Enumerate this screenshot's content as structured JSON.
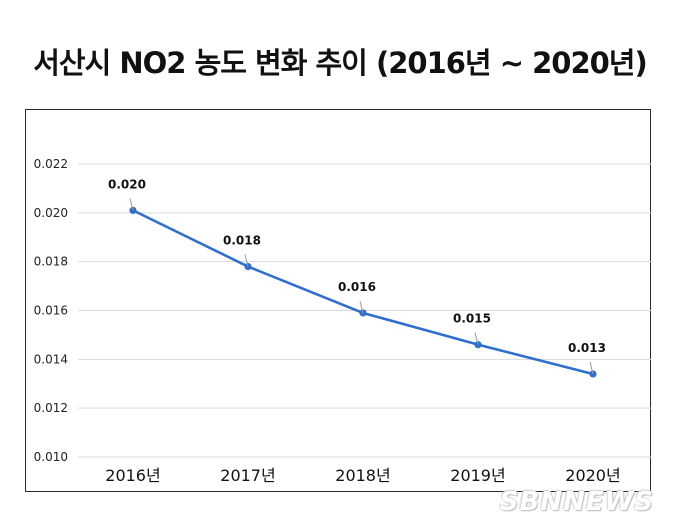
{
  "chart_data": {
    "type": "line",
    "title": "서산시 NO2 농도 변화 추이 (2016년 ~ 2020년)",
    "categories": [
      "2016년",
      "2017년",
      "2018년",
      "2019년",
      "2020년"
    ],
    "series": [
      {
        "name": "NO2",
        "values": [
          0.0201,
          0.0178,
          0.0159,
          0.0146,
          0.0134
        ]
      }
    ],
    "data_labels": [
      "0.020",
      "0.018",
      "0.016",
      "0.015",
      "0.013"
    ],
    "ylim": [
      0.01,
      0.022
    ],
    "yticks": [
      0.01,
      0.012,
      0.014,
      0.016,
      0.018,
      0.02,
      0.022
    ],
    "ytick_labels": [
      "0.010",
      "0.012",
      "0.014",
      "0.016",
      "0.018",
      "0.020",
      "0.022"
    ],
    "xlabel": "",
    "ylabel": "",
    "grid": true,
    "line_color": "#2f6fd0"
  },
  "watermark": "SBNNEWS"
}
